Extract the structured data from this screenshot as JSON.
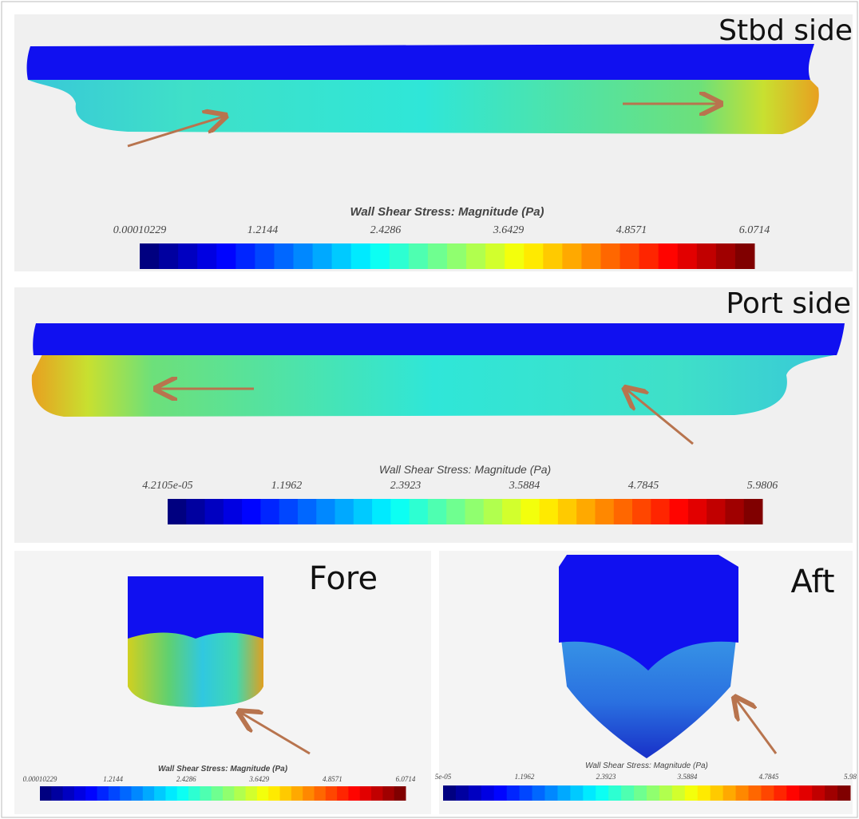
{
  "panels": [
    {
      "label": "Stbd side",
      "colorbar": {
        "title": "Wall Shear Stress: Magnitude (Pa)",
        "ticks": [
          "0.00010229",
          "1.2144",
          "2.4286",
          "3.6429",
          "4.8571",
          "6.0714"
        ]
      }
    },
    {
      "label": "Port side",
      "colorbar": {
        "title": "Wall Shear Stress: Magnitude (Pa)",
        "ticks": [
          "4.2105e-05",
          "1.1962",
          "2.3923",
          "3.5884",
          "4.7845",
          "5.9806"
        ]
      }
    },
    {
      "label": "Fore",
      "colorbar": {
        "title": "Wall Shear Stress: Magnitude (Pa)",
        "ticks": [
          "0.00010229",
          "1.2144",
          "2.4286",
          "3.6429",
          "4.8571",
          "6.0714"
        ]
      }
    },
    {
      "label": "Aft",
      "colorbar": {
        "title": "Wall Shear Stress: Magnitude (Pa)",
        "ticks": [
          "5e-05",
          "1.1962",
          "2.3923",
          "3.5884",
          "4.7845",
          "5.98"
        ]
      }
    }
  ]
}
